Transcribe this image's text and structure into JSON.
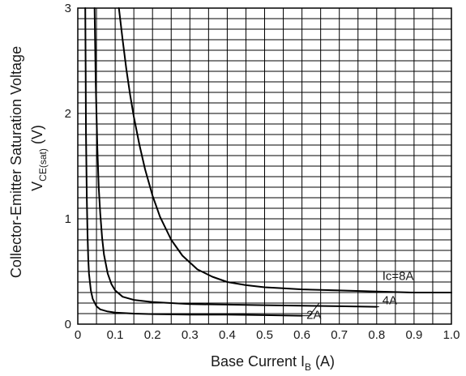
{
  "chart_data": {
    "type": "line",
    "xlim": [
      0,
      1.0
    ],
    "ylim": [
      0,
      3
    ],
    "x_ticks": [
      "0",
      "0.1",
      "0.2",
      "0.3",
      "0.4",
      "0.5",
      "0.6",
      "0.7",
      "0.8",
      "0.9",
      "1.0"
    ],
    "y_ticks": [
      "0",
      "1",
      "2",
      "3"
    ],
    "xlabel": "Base Current I",
    "xlabel_subscript": "B",
    "xlabel_unit": " (A)",
    "ylabel_line1": "Collector-Emitter Saturation Voltage",
    "ylabel_line2_main": "V",
    "ylabel_line2_sub": "CE(sat)",
    "ylabel_line2_unit": "  (V)",
    "grid": true,
    "series": [
      {
        "name": "Ic=8A",
        "x": [
          0.11,
          0.12,
          0.13,
          0.14,
          0.15,
          0.165,
          0.18,
          0.2,
          0.22,
          0.25,
          0.28,
          0.32,
          0.36,
          0.4,
          0.45,
          0.5,
          0.55,
          0.6,
          0.7,
          0.8,
          0.9,
          1.0
        ],
        "y": [
          3.0,
          2.7,
          2.42,
          2.18,
          1.97,
          1.7,
          1.47,
          1.22,
          1.02,
          0.8,
          0.65,
          0.52,
          0.45,
          0.4,
          0.37,
          0.35,
          0.34,
          0.33,
          0.32,
          0.31,
          0.3,
          0.3
        ]
      },
      {
        "name": "4A",
        "x": [
          0.045,
          0.048,
          0.052,
          0.056,
          0.06,
          0.065,
          0.07,
          0.08,
          0.09,
          0.1,
          0.12,
          0.15,
          0.2,
          0.3,
          0.4,
          0.5,
          0.6,
          0.7,
          0.8
        ],
        "y": [
          3.0,
          2.3,
          1.7,
          1.3,
          1.05,
          0.82,
          0.66,
          0.48,
          0.38,
          0.32,
          0.26,
          0.23,
          0.21,
          0.19,
          0.185,
          0.18,
          0.175,
          0.17,
          0.165
        ]
      },
      {
        "name": "2A",
        "x": [
          0.02,
          0.021,
          0.022,
          0.024,
          0.026,
          0.028,
          0.03,
          0.035,
          0.04,
          0.05,
          0.06,
          0.08,
          0.1,
          0.15,
          0.2,
          0.3,
          0.4,
          0.5,
          0.6
        ],
        "y": [
          3.0,
          2.4,
          1.8,
          1.2,
          0.85,
          0.62,
          0.48,
          0.32,
          0.24,
          0.17,
          0.14,
          0.12,
          0.11,
          0.1,
          0.095,
          0.09,
          0.09,
          0.085,
          0.08
        ]
      }
    ],
    "annotations": {
      "ic8": "Ic=8A",
      "ic4": "4A",
      "ic2": "2A"
    }
  }
}
